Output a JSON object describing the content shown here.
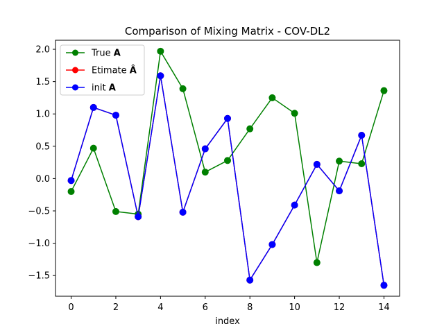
{
  "chart_data": {
    "type": "line",
    "title": "Comparison of Mixing Matrix - COV-DL2",
    "xlabel": "index",
    "ylabel": "",
    "xlim": [
      -0.7,
      14.7
    ],
    "ylim": [
      -1.82,
      2.14
    ],
    "xticks": [
      0,
      2,
      4,
      6,
      8,
      10,
      12,
      14
    ],
    "yticks": [
      -1.5,
      -1.0,
      -0.5,
      0.0,
      0.5,
      1.0,
      1.5,
      2.0
    ],
    "ytick_labels": [
      "−1.5",
      "−1.0",
      "−0.5",
      "0.0",
      "0.5",
      "1.0",
      "1.5",
      "2.0"
    ],
    "grid": false,
    "legend_position": "upper-left",
    "x": [
      0,
      1,
      2,
      3,
      4,
      5,
      6,
      7,
      8,
      9,
      10,
      11,
      12,
      13,
      14
    ],
    "series": [
      {
        "name": "True",
        "name_bold": "A",
        "color": "#008000",
        "values": [
          -0.2,
          0.47,
          -0.51,
          -0.55,
          1.97,
          1.39,
          0.1,
          0.28,
          0.77,
          1.25,
          1.01,
          -1.3,
          0.27,
          0.23,
          1.36
        ]
      },
      {
        "name": "Etimate",
        "name_bold": "Â",
        "color": "#ff0000",
        "values": [
          -0.03,
          1.1,
          0.98,
          -0.59,
          1.59,
          -0.52,
          0.46,
          0.93,
          -1.57,
          -1.02,
          -0.41,
          0.22,
          -0.19,
          0.67,
          -1.65
        ]
      },
      {
        "name": "init",
        "name_bold": "A",
        "color": "#0000ff",
        "values": [
          -0.03,
          1.1,
          0.98,
          -0.59,
          1.59,
          -0.52,
          0.46,
          0.93,
          -1.57,
          -1.02,
          -0.41,
          0.22,
          -0.19,
          0.67,
          -1.65
        ]
      }
    ]
  }
}
